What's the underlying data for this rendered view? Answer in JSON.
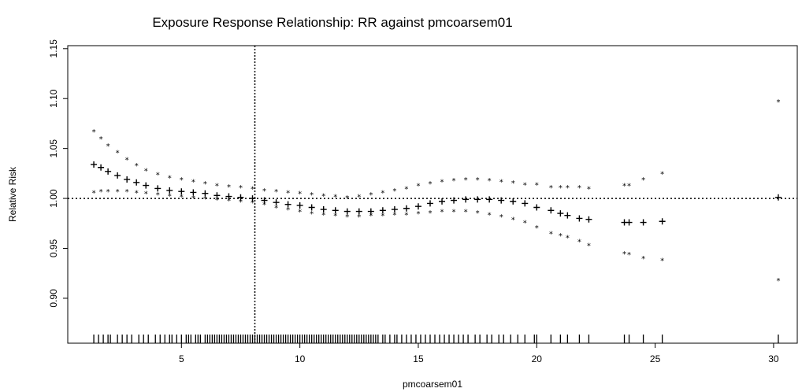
{
  "chart_data": {
    "type": "scatter",
    "title": "Exposure Response Relationship: RR against pmcoarsem01",
    "xlabel": "pmcoarsem01",
    "ylabel": "Relative Risk",
    "xlim": [
      0.2,
      31.0
    ],
    "ylim": [
      0.855,
      1.153
    ],
    "x_ticks": [
      5,
      10,
      15,
      20,
      25,
      30
    ],
    "y_ticks": [
      0.9,
      0.95,
      1.0,
      1.05,
      1.1,
      1.15
    ],
    "x_tick_labels": [
      "5",
      "10",
      "15",
      "20",
      "25",
      "30"
    ],
    "y_tick_labels": [
      "0.90",
      "0.95",
      "1.00",
      "1.05",
      "1.10",
      "1.15"
    ],
    "reference_line_y": 1.0,
    "reference_line_x": 8.1,
    "x": [
      1.3,
      1.6,
      1.9,
      2.3,
      2.7,
      3.1,
      3.5,
      4.0,
      4.5,
      5.0,
      5.5,
      6.0,
      6.5,
      7.0,
      7.5,
      8.0,
      8.5,
      9.0,
      9.5,
      10.0,
      10.5,
      11.0,
      11.5,
      12.0,
      12.5,
      13.0,
      13.5,
      14.0,
      14.5,
      15.0,
      15.5,
      16.0,
      16.5,
      17.0,
      17.5,
      18.0,
      18.5,
      19.0,
      19.5,
      20.0,
      20.6,
      21.0,
      21.3,
      21.8,
      22.2,
      23.7,
      23.9,
      24.5,
      25.3,
      30.2
    ],
    "series": [
      {
        "marker": "+",
        "values": [
          1.034,
          1.031,
          1.027,
          1.023,
          1.019,
          1.016,
          1.013,
          1.01,
          1.008,
          1.007,
          1.006,
          1.005,
          1.003,
          1.002,
          1.001,
          1.0,
          0.998,
          0.996,
          0.994,
          0.993,
          0.991,
          0.989,
          0.988,
          0.987,
          0.987,
          0.987,
          0.988,
          0.989,
          0.99,
          0.992,
          0.995,
          0.997,
          0.998,
          0.999,
          0.999,
          0.999,
          0.998,
          0.997,
          0.995,
          0.991,
          0.988,
          0.985,
          0.983,
          0.98,
          0.979,
          0.976,
          0.976,
          0.976,
          0.977,
          1.001
        ]
      },
      {
        "marker": "*",
        "values": [
          1.067,
          1.06,
          1.053,
          1.046,
          1.039,
          1.033,
          1.028,
          1.024,
          1.021,
          1.019,
          1.017,
          1.015,
          1.013,
          1.012,
          1.011,
          1.01,
          1.008,
          1.007,
          1.006,
          1.005,
          1.004,
          1.003,
          1.002,
          1.001,
          1.002,
          1.004,
          1.006,
          1.008,
          1.01,
          1.013,
          1.015,
          1.017,
          1.018,
          1.019,
          1.019,
          1.018,
          1.017,
          1.016,
          1.014,
          1.014,
          1.011,
          1.011,
          1.011,
          1.011,
          1.01,
          1.013,
          1.013,
          1.019,
          1.025,
          1.097
        ]
      },
      {
        "marker": "*",
        "values": [
          1.006,
          1.007,
          1.007,
          1.007,
          1.007,
          1.006,
          1.005,
          1.004,
          1.003,
          1.002,
          1.001,
          1.0,
          0.999,
          0.998,
          0.997,
          0.996,
          0.994,
          0.991,
          0.989,
          0.987,
          0.985,
          0.984,
          0.983,
          0.982,
          0.982,
          0.983,
          0.983,
          0.984,
          0.984,
          0.985,
          0.986,
          0.987,
          0.987,
          0.987,
          0.986,
          0.984,
          0.982,
          0.979,
          0.976,
          0.971,
          0.965,
          0.963,
          0.961,
          0.957,
          0.953,
          0.945,
          0.944,
          0.94,
          0.938,
          0.918
        ]
      }
    ],
    "rug_x": [
      1.3,
      1.5,
      1.7,
      1.9,
      2.0,
      2.3,
      2.5,
      2.7,
      2.9,
      3.2,
      3.4,
      3.6,
      3.9,
      4.1,
      4.3,
      4.5,
      4.6,
      4.8,
      5.0,
      5.2,
      5.3,
      5.4,
      5.6,
      5.7,
      5.8,
      6.0,
      6.1,
      6.2,
      6.3,
      6.4,
      6.5,
      6.6,
      6.7,
      6.8,
      6.9,
      7.0,
      7.1,
      7.2,
      7.3,
      7.4,
      7.5,
      7.6,
      7.7,
      7.8,
      7.9,
      8.0,
      8.1,
      8.2,
      8.3,
      8.4,
      8.5,
      8.6,
      8.7,
      8.8,
      8.9,
      9.0,
      9.1,
      9.2,
      9.3,
      9.4,
      9.5,
      9.6,
      9.7,
      9.8,
      9.9,
      10.0,
      10.1,
      10.2,
      10.3,
      10.4,
      10.5,
      10.6,
      10.7,
      10.8,
      10.9,
      11.0,
      11.1,
      11.2,
      11.3,
      11.4,
      11.5,
      11.6,
      11.7,
      11.8,
      11.9,
      12.0,
      12.1,
      12.2,
      12.3,
      12.4,
      12.5,
      12.6,
      12.7,
      12.8,
      12.9,
      13.0,
      13.1,
      13.2,
      13.3,
      13.5,
      13.6,
      13.8,
      14.0,
      14.1,
      14.3,
      14.5,
      14.7,
      14.9,
      15.1,
      15.3,
      15.5,
      15.7,
      15.9,
      16.1,
      16.3,
      16.5,
      16.7,
      16.9,
      17.1,
      17.4,
      17.6,
      17.9,
      18.1,
      18.4,
      18.6,
      18.9,
      19.2,
      19.5,
      19.9,
      20.0,
      20.6,
      21.0,
      21.3,
      21.8,
      22.2,
      23.7,
      23.9,
      24.5,
      25.3,
      30.2
    ]
  }
}
